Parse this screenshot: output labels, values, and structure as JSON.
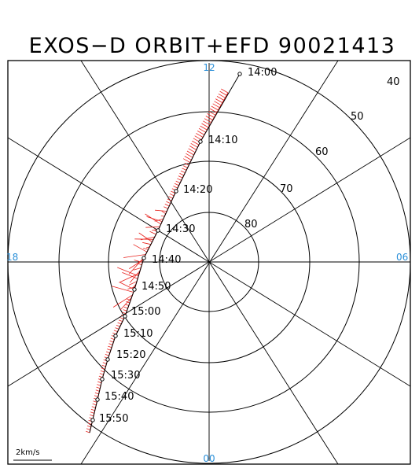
{
  "title": "EXOS−D ORBIT+EFD 90021413",
  "mlt_labels": {
    "top": "12",
    "left": "18",
    "right": "06",
    "bottom": "00"
  },
  "latitude_labels": [
    "40",
    "50",
    "60",
    "70",
    "80"
  ],
  "latitude_circles": [
    50,
    60,
    70,
    80
  ],
  "orbit_times": [
    "14:00",
    "14:10",
    "14:20",
    "14:30",
    "14:40",
    "14:50",
    "15:00",
    "15:10",
    "15:20",
    "15:30",
    "15:40",
    "15:50"
  ],
  "scale_label": "2km/s",
  "colors": {
    "vectors": "#e8231e",
    "mlt_labels": "#2a8fd8",
    "grid": "#000000"
  }
}
